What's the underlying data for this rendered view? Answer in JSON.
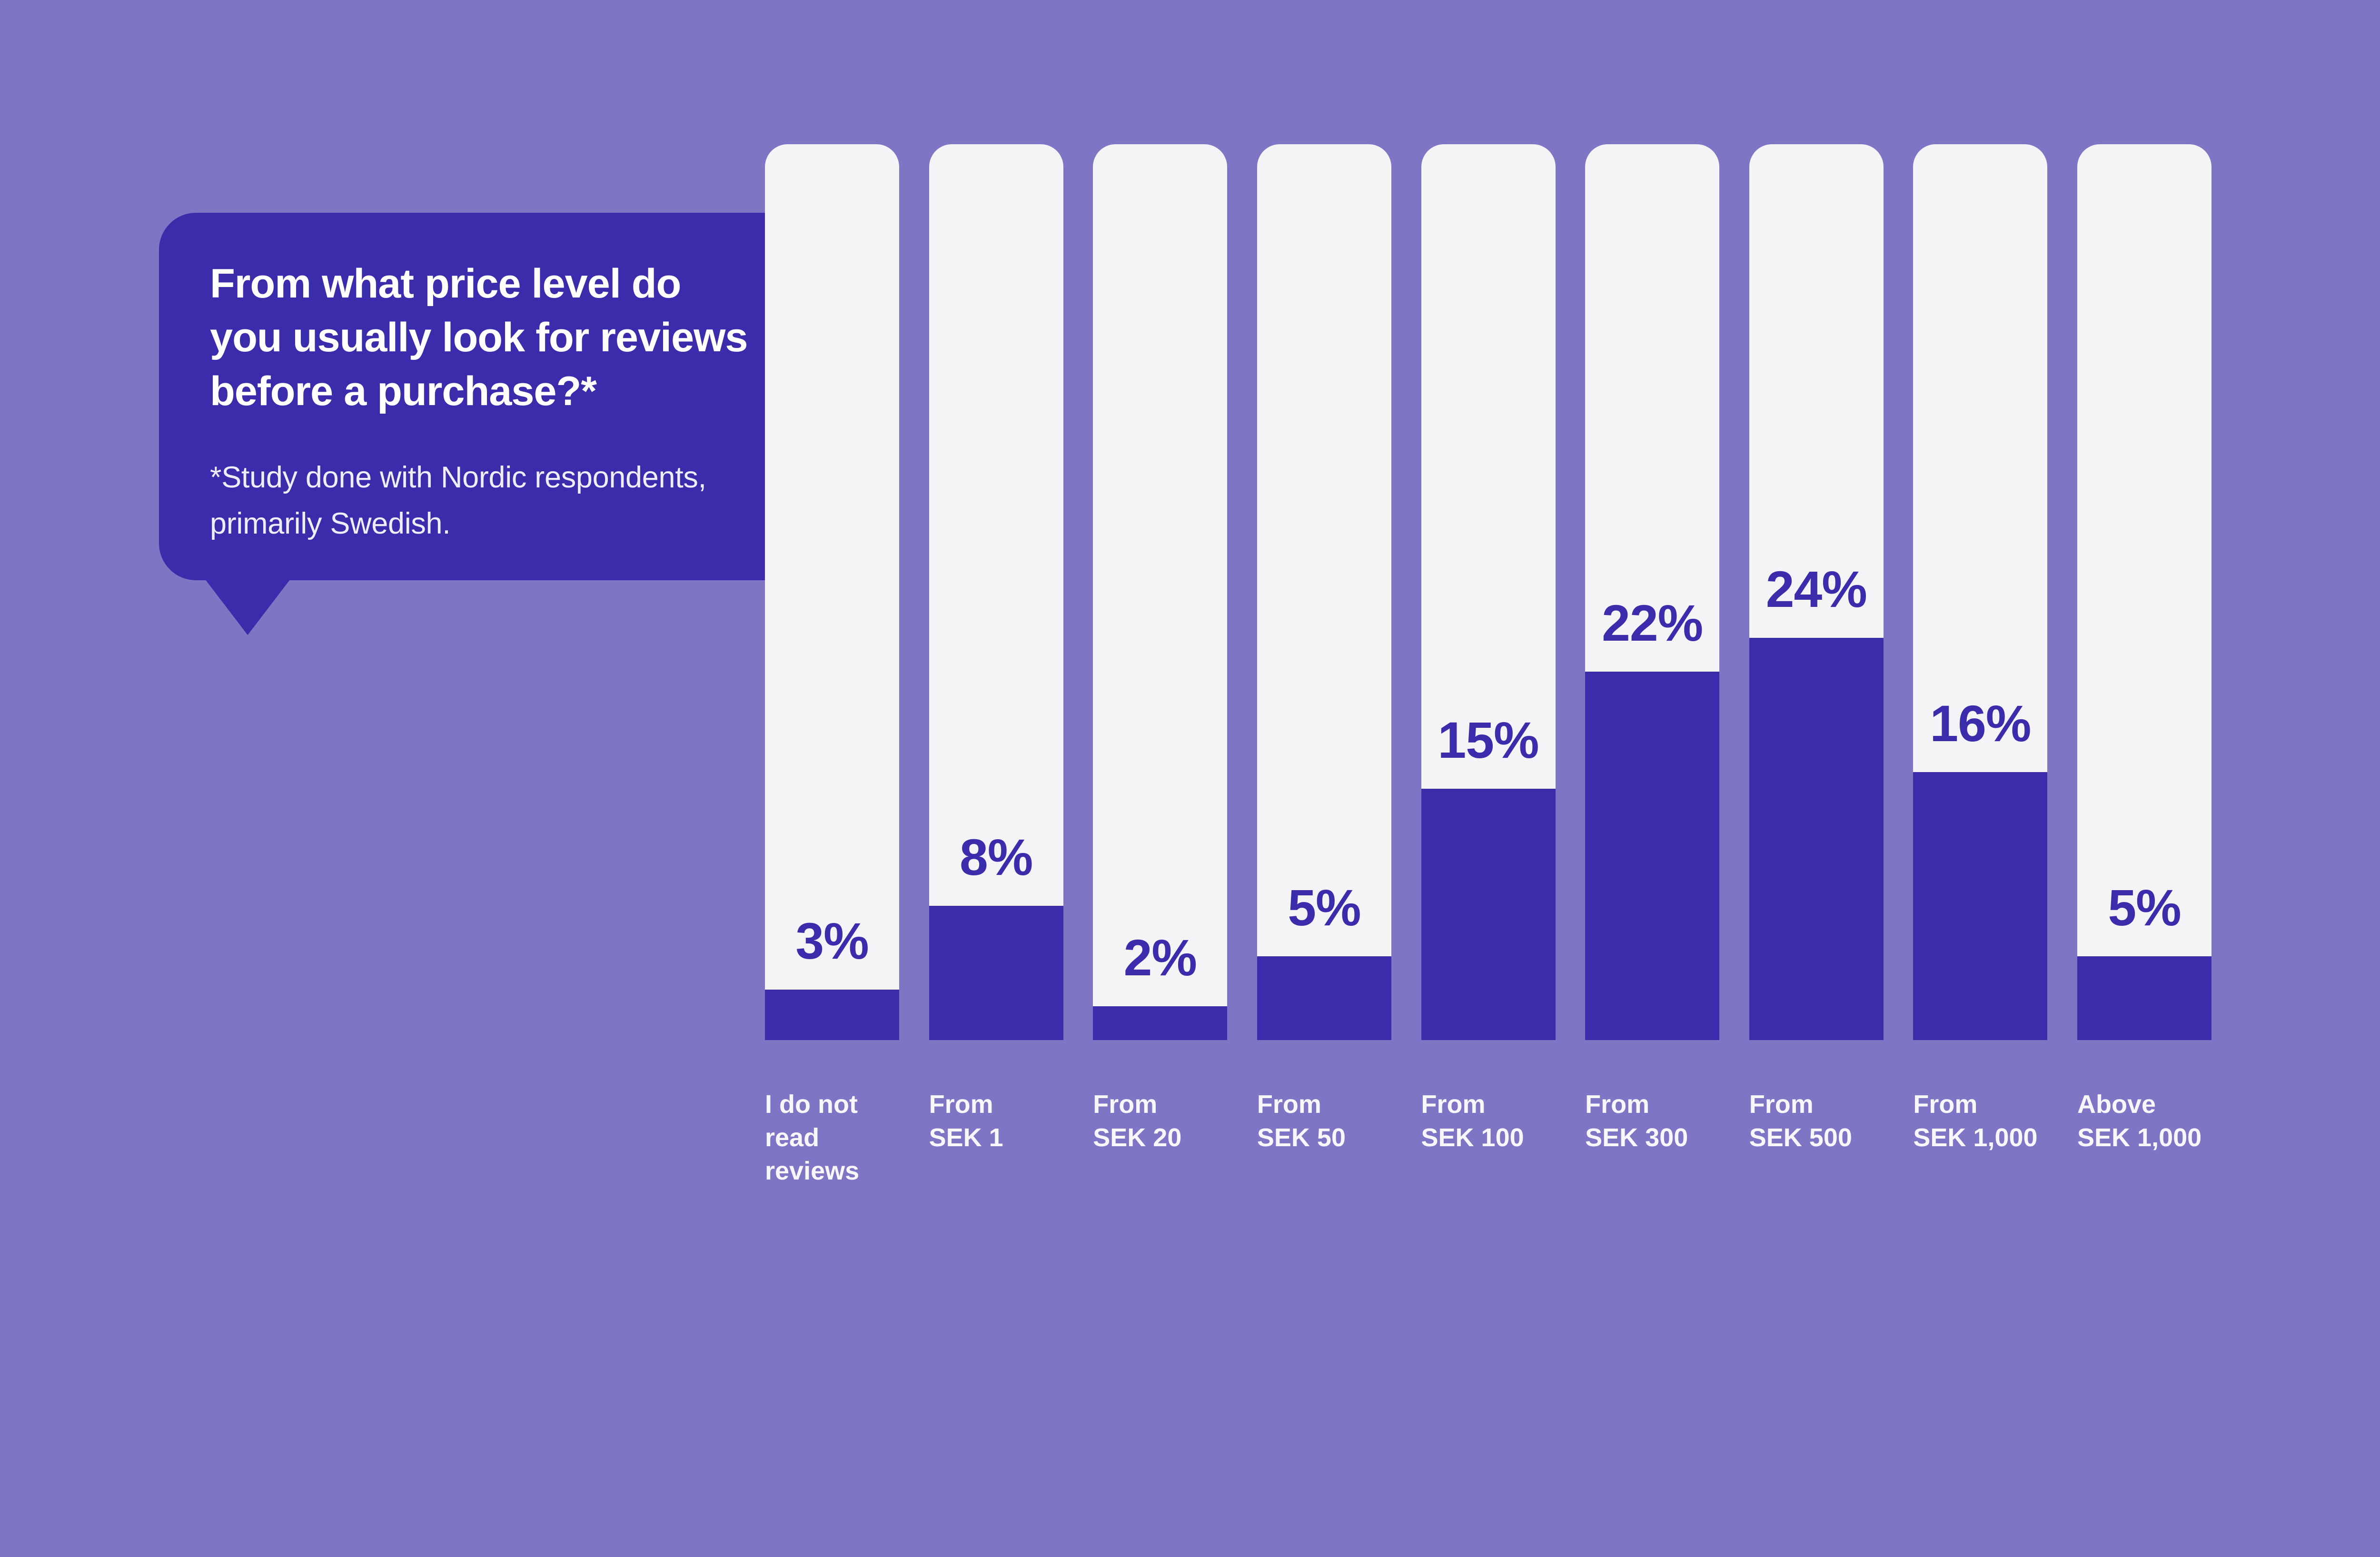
{
  "colors": {
    "background": "#7E75C4",
    "accent": "#3A2CAA",
    "track": "#F4F3F6",
    "title_text": "#FFFFFF",
    "footnote_text": "#EFEDFA",
    "category_text": "#F7F6FB"
  },
  "bubble": {
    "title": "From what price level do\nyou usually look for reviews\nbefore a purchase?*",
    "footnote": "*Study done with Nordic respondents,\nprimarily Swedish."
  },
  "chart_data": {
    "type": "bar",
    "title": "From what price level do you usually look for reviews before a purchase?*",
    "subtitle": "*Study done with Nordic respondents, primarily Swedish.",
    "categories": [
      "I do not read reviews",
      "From SEK 1",
      "From SEK 20",
      "From SEK 50",
      "From SEK 100",
      "From SEK 300",
      "From SEK 500",
      "From SEK 1,000",
      "Above SEK 1,000"
    ],
    "values": [
      3,
      8,
      2,
      5,
      15,
      22,
      24,
      16,
      5
    ],
    "unit": "%",
    "value_labels": [
      "3%",
      "8%",
      "2%",
      "5%",
      "15%",
      "22%",
      "24%",
      "16%",
      "5%"
    ],
    "category_label_lines": [
      "I do not\nread\nreviews",
      "From\nSEK 1",
      "From\nSEK 20",
      "From\nSEK 50",
      "From\nSEK 100",
      "From\nSEK 300",
      "From\nSEK 500",
      "From\nSEK 1,000",
      "Above\nSEK 1,000"
    ],
    "xlabel": "",
    "ylabel": "",
    "ylim": [
      0,
      53.5
    ],
    "grid": false,
    "legend": "none",
    "bar_fill_color": "#3A2CAA",
    "bar_track_color": "#F4F3F6"
  }
}
